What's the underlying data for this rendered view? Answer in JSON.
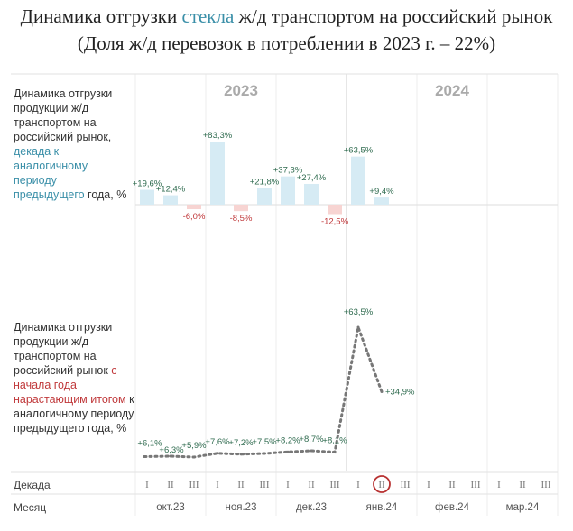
{
  "title": {
    "line1_part1": "Динамика отгрузки ",
    "line1_accent": "стекла",
    "line1_part2": " ж/д транспортом на российский рынок",
    "line2": "(Доля ж/д перевозок в потреблении в 2023 г. – 22%)"
  },
  "panel_top": {
    "desc_main": "Динамика отгрузки продукции ж/д транспортом на российский рынок,",
    "desc_colored": "декада к аналогичному периоду предыдущего",
    "desc_end": "года, %"
  },
  "panel_bottom": {
    "desc_main": "Динамика отгрузки продукции ж/д транспортом на российский рынок",
    "desc_colored": "с начала года нарастающим итогом",
    "desc_end": "к аналогичному периоду предыдущего года, %"
  },
  "axis": {
    "years": [
      "2023",
      "2024"
    ],
    "dekada_label": "Декада",
    "month_label": "Месяц",
    "dekada_ticks": [
      "I",
      "II",
      "III"
    ],
    "months": [
      "окт.23",
      "ноя.23",
      "дек.23",
      "янв.24",
      "фев.24",
      "мар.24"
    ],
    "highlight_note": "II"
  },
  "chart_data": [
    {
      "type": "bar",
      "title": "Декада к аналогичному периоду предыдущего года, %",
      "categories": [
        "окт.23 I",
        "окт.23 II",
        "окт.23 III",
        "ноя.23 I",
        "ноя.23 II",
        "ноя.23 III",
        "дек.23 I",
        "дек.23 II",
        "дек.23 III",
        "янв.24 I",
        "янв.24 II"
      ],
      "values": [
        19.6,
        12.4,
        -6.0,
        83.3,
        -8.5,
        21.8,
        37.3,
        27.4,
        -12.5,
        63.5,
        9.4
      ],
      "labels": [
        "+19,6%",
        "+12,4%",
        "-6,0%",
        "+83,3%",
        "-8,5%",
        "+21,8%",
        "+37,3%",
        "+27,4%",
        "-12,5%",
        "+63,5%",
        "+9,4%"
      ],
      "colors": {
        "positive": "#d6ebf4",
        "negative": "#f7d4d2",
        "positive_label": "#2f6b4f",
        "negative_label": "#c0393b"
      }
    },
    {
      "type": "line",
      "title": "С начала года нарастающим итогом к аналогичному периоду предыдущего года, %",
      "categories": [
        "окт.23 I",
        "окт.23 II",
        "окт.23 III",
        "ноя.23 I",
        "ноя.23 II",
        "ноя.23 III",
        "дек.23 I",
        "дек.23 II",
        "дек.23 III",
        "янв.24 I",
        "янв.24 II"
      ],
      "values": [
        6.1,
        6.3,
        5.9,
        7.6,
        7.2,
        7.5,
        8.2,
        8.7,
        8.1,
        63.5,
        34.9
      ],
      "labels": [
        "+6,1%",
        "+6,3%",
        "+5,9%",
        "+7,6%",
        "+7,2%",
        "+7,5%",
        "+8,2%",
        "+8,7%",
        "+8,1%",
        "+63,5%",
        "+34,9%"
      ],
      "colors": {
        "line": "#777777",
        "label": "#2f6b4f"
      }
    }
  ]
}
